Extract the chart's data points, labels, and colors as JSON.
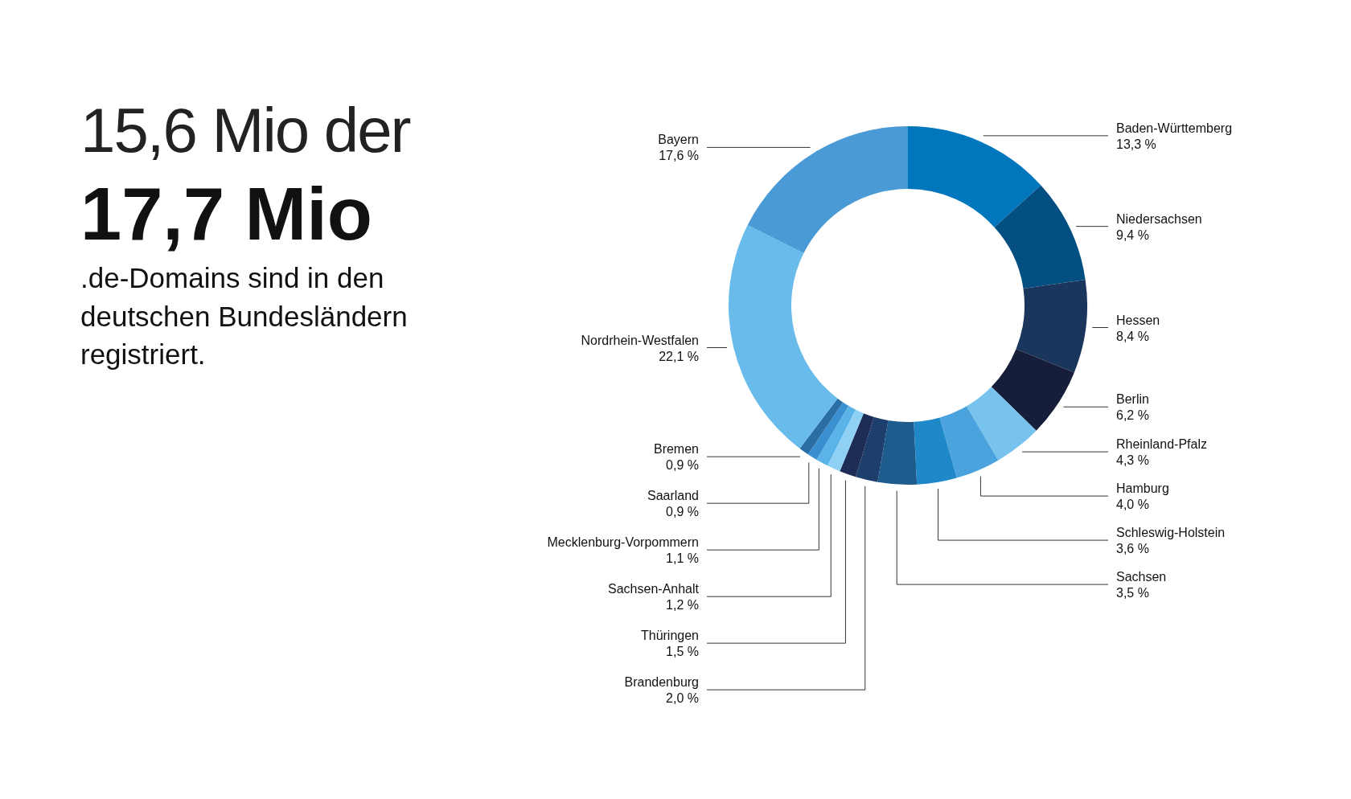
{
  "chart_data": {
    "type": "donut",
    "title": "15,6 Mio der",
    "subtitle": "17,7 Mio",
    "annotations": [
      ".de-Domains sind in den deutschen Bundesländern registriert."
    ],
    "categories": [
      "Baden-Württemberg",
      "Niedersachsen",
      "Hessen",
      "Berlin",
      "Rheinland-Pfalz",
      "Hamburg",
      "Schleswig-Holstein",
      "Sachsen",
      "Brandenburg",
      "Thüringen",
      "Sachsen-Anhalt",
      "Mecklenburg-Vorpommern",
      "Saarland",
      "Bremen",
      "Nordrhein-Westfalen",
      "Bayern"
    ],
    "values": [
      13.3,
      9.4,
      8.4,
      6.2,
      4.3,
      4.0,
      3.6,
      3.5,
      2.0,
      1.5,
      1.2,
      1.1,
      0.9,
      0.9,
      22.1,
      17.6
    ],
    "value_labels": [
      "13,3 %",
      "9,4 %",
      "8,4 %",
      "6,2 %",
      "4,3 %",
      "4,0 %",
      "3,6 %",
      "3,5 %",
      "2,0 %",
      "1,5 %",
      "1,2 %",
      "1,1 %",
      "0,9 %",
      "0,9 %",
      "22,1 %",
      "17,6 %"
    ],
    "colors": [
      "#0077bd",
      "#034f82",
      "#1b365d",
      "#161e3a",
      "#78c3ee",
      "#4ba3de",
      "#1e88c8",
      "#1f5c8e",
      "#1e3e6e",
      "#1e2d55",
      "#8fd0f5",
      "#5bb4e8",
      "#3a8fd0",
      "#2a6ea6",
      "#68bbeb",
      "#4a9ad6"
    ]
  }
}
